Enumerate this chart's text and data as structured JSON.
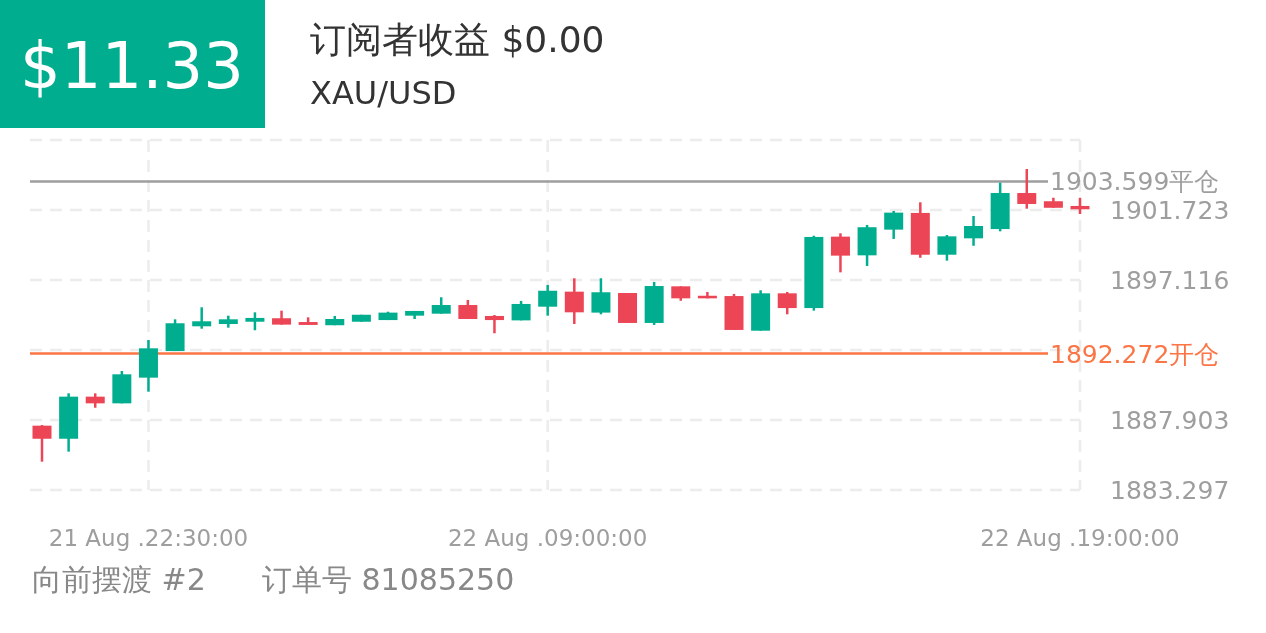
{
  "chart_data": {
    "type": "candlestick",
    "title": "订阅者收益 $0.00",
    "subtitle": "XAU/USD",
    "annotations": [
      "$11.33",
      "向前摆渡 #2",
      "订单号 81085250"
    ],
    "categories": [
      null,
      null,
      null,
      null,
      "21 Aug .22:30:00",
      null,
      null,
      null,
      null,
      null,
      null,
      null,
      null,
      null,
      null,
      null,
      null,
      null,
      null,
      "22 Aug .09:00:00",
      null,
      null,
      null,
      null,
      null,
      null,
      null,
      null,
      null,
      null,
      null,
      null,
      null,
      null,
      null,
      null,
      null,
      null,
      null,
      "22 Aug .19:00:00"
    ],
    "ohlc": [
      [
        1887.53,
        1887.57,
        1885.16,
        1886.67
      ],
      [
        1886.67,
        1889.66,
        1885.82,
        1889.44
      ],
      [
        1889.44,
        1889.66,
        1888.71,
        1889.0
      ],
      [
        1889.0,
        1891.13,
        1889.0,
        1890.91
      ],
      [
        1890.69,
        1893.17,
        1889.77,
        1892.62
      ],
      [
        1892.44,
        1894.53,
        1892.44,
        1894.27
      ],
      [
        1894.07,
        1895.32,
        1893.91,
        1894.4
      ],
      [
        1894.22,
        1894.77,
        1893.98,
        1894.53
      ],
      [
        1894.37,
        1894.99,
        1893.81,
        1894.62
      ],
      [
        1894.6,
        1895.1,
        1894.18,
        1894.18
      ],
      [
        1894.35,
        1894.66,
        1894.16,
        1894.16
      ],
      [
        1894.14,
        1894.75,
        1894.14,
        1894.55
      ],
      [
        1894.37,
        1894.83,
        1894.37,
        1894.83
      ],
      [
        1894.48,
        1895.03,
        1894.48,
        1894.97
      ],
      [
        1894.77,
        1895.08,
        1894.55,
        1895.08
      ],
      [
        1894.9,
        1895.98,
        1894.9,
        1895.47
      ],
      [
        1895.47,
        1895.8,
        1894.55,
        1894.55
      ],
      [
        1894.75,
        1894.81,
        1893.61,
        1894.48
      ],
      [
        1894.46,
        1895.74,
        1894.46,
        1895.54
      ],
      [
        1895.36,
        1896.79,
        1894.77,
        1896.41
      ],
      [
        1896.35,
        1897.23,
        1894.22,
        1894.99
      ],
      [
        1894.97,
        1897.23,
        1894.86,
        1896.31
      ],
      [
        1896.26,
        1896.26,
        1894.29,
        1894.29
      ],
      [
        1894.29,
        1896.99,
        1894.16,
        1896.72
      ],
      [
        1896.7,
        1896.7,
        1895.75,
        1895.91
      ],
      [
        1896.08,
        1896.33,
        1895.91,
        1895.91
      ],
      [
        1896.06,
        1896.2,
        1893.83,
        1893.83
      ],
      [
        1893.78,
        1896.44,
        1893.78,
        1896.24
      ],
      [
        1896.24,
        1896.33,
        1894.86,
        1895.27
      ],
      [
        1895.27,
        1900.03,
        1895.1,
        1899.95
      ],
      [
        1899.97,
        1900.19,
        1897.62,
        1898.72
      ],
      [
        1898.74,
        1900.74,
        1898.04,
        1900.59
      ],
      [
        1900.43,
        1901.66,
        1899.82,
        1901.55
      ],
      [
        1901.53,
        1902.23,
        1898.58,
        1898.78
      ],
      [
        1898.78,
        1900.08,
        1898.39,
        1899.99
      ],
      [
        1899.86,
        1901.33,
        1899.37,
        1900.67
      ],
      [
        1900.47,
        1903.52,
        1900.32,
        1902.84
      ],
      [
        1902.84,
        1904.42,
        1901.81,
        1902.12
      ],
      [
        1902.3,
        1902.53,
        1901.87,
        1901.87
      ],
      [
        1901.99,
        1902.53,
        1901.46,
        1901.77
      ]
    ],
    "colors": [
      "#ec4556",
      "#00ae8f",
      "#ec4556",
      "#00ae8f",
      "#00ae8f",
      "#00ae8f",
      "#00ae8f",
      "#00ae8f",
      "#00ae8f",
      "#ec4556",
      "#ec4556",
      "#00ae8f",
      "#00ae8f",
      "#00ae8f",
      "#00ae8f",
      "#00ae8f",
      "#ec4556",
      "#ec4556",
      "#00ae8f",
      "#00ae8f",
      "#ec4556",
      "#00ae8f",
      "#ec4556",
      "#00ae8f",
      "#ec4556",
      "#ec4556",
      "#ec4556",
      "#00ae8f",
      "#ec4556",
      "#00ae8f",
      "#ec4556",
      "#00ae8f",
      "#00ae8f",
      "#ec4556",
      "#00ae8f",
      "#00ae8f",
      "#00ae8f",
      "#ec4556",
      "#ec4556",
      "#ec4556"
    ],
    "ylim": [
      1883.297,
      1906.33
    ],
    "yticks": [
      1883.297,
      1887.903,
      {
        "value": 1892.51,
        "label": null
      },
      1897.116,
      1901.723,
      {
        "value": 1906.33,
        "label": null
      }
    ],
    "ref_lines": [
      {
        "axis": "y",
        "value": 1903.599,
        "label": "1903.599平仓",
        "color": "#9e9e9e"
      },
      {
        "axis": "y",
        "value": 1892.272,
        "label": "1892.272开仓",
        "color": "#fb7545"
      }
    ],
    "grid": true
  }
}
